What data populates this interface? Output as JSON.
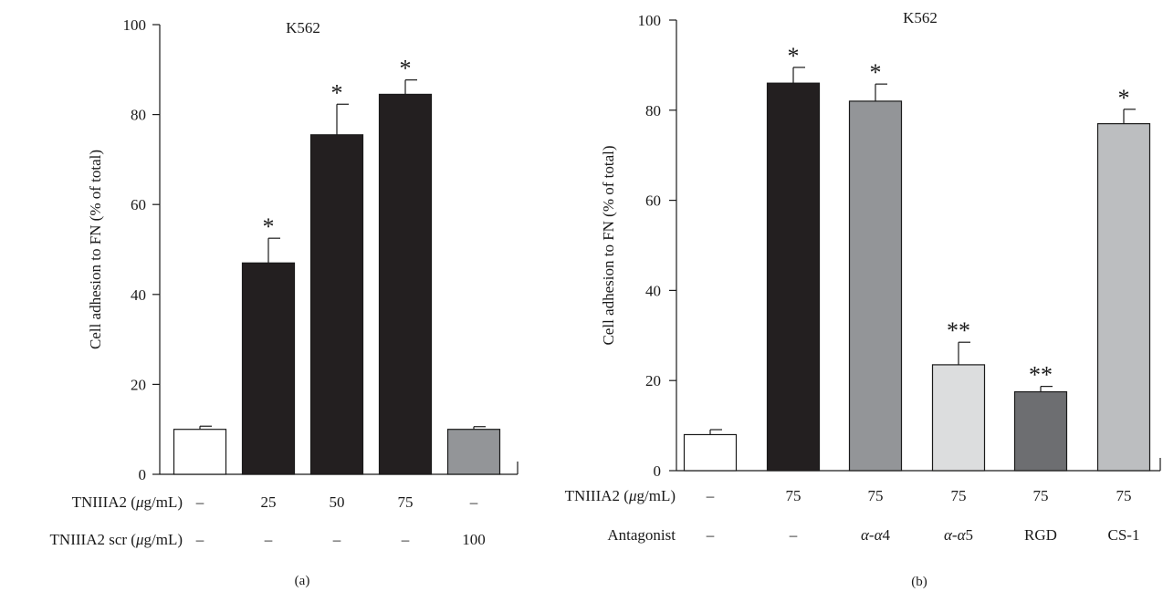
{
  "chart_data": [
    {
      "panel": "(a)",
      "type": "bar",
      "title": "K562",
      "ylabel": "Cell adhesion to FN (% of total)",
      "ylim": [
        0,
        100
      ],
      "yticks": [
        0,
        20,
        40,
        60,
        80,
        100
      ],
      "values": [
        10,
        47,
        75.5,
        84.5,
        10
      ],
      "errors": [
        0.7,
        5.5,
        6.8,
        3.2,
        0.6
      ],
      "significance": [
        "",
        "*",
        "*",
        "*",
        ""
      ],
      "colors": [
        "#ffffff",
        "#231f20",
        "#231f20",
        "#231f20",
        "#939598"
      ],
      "condition_rows": [
        {
          "label": "TNIIIA2 (μg/mL)",
          "values": [
            "–",
            "25",
            "50",
            "75",
            "–"
          ]
        },
        {
          "label": "TNIIIA2 scr (μg/mL)",
          "values": [
            "–",
            "–",
            "–",
            "–",
            "100"
          ]
        }
      ],
      "grid": false
    },
    {
      "panel": "(b)",
      "type": "bar",
      "title": "K562",
      "ylabel": "Cell adhesion to FN (% of total)",
      "ylim": [
        0,
        100
      ],
      "yticks": [
        0,
        20,
        40,
        60,
        80,
        100
      ],
      "values": [
        8,
        86,
        82,
        23.5,
        17.5,
        77
      ],
      "errors": [
        1.1,
        3.5,
        3.8,
        5,
        1.2,
        3.2
      ],
      "significance": [
        "",
        "*",
        "*",
        "**",
        "**",
        "*"
      ],
      "colors": [
        "#ffffff",
        "#231f20",
        "#939598",
        "#dcddde",
        "#6d6e71",
        "#bcbec0"
      ],
      "condition_rows": [
        {
          "label": "TNIIIA2 (μg/mL)",
          "values": [
            "–",
            "75",
            "75",
            "75",
            "75",
            "75"
          ]
        },
        {
          "label": "Antagonist",
          "values": [
            "–",
            "–",
            "α-α4",
            "α-α5",
            "RGD",
            "CS-1"
          ]
        }
      ],
      "grid": false
    }
  ]
}
